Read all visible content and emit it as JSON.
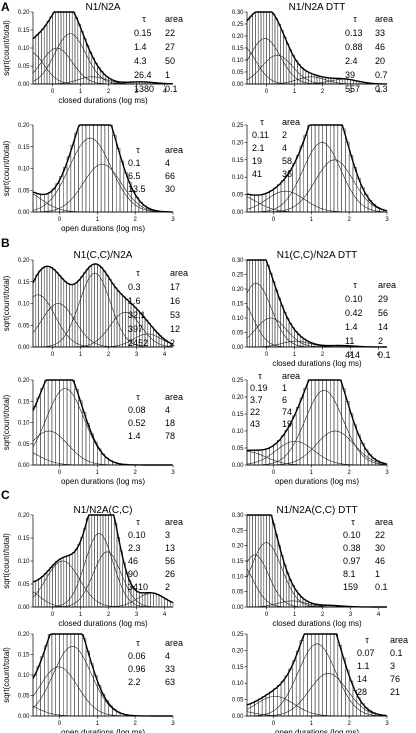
{
  "figure": {
    "panels": [
      {
        "letter": "A"
      },
      {
        "letter": "B"
      },
      {
        "letter": "C"
      }
    ]
  },
  "chart_data": [
    {
      "type": "bar",
      "panel": "A",
      "title": "N1/N2A",
      "xlabel": "closed durations (log ms)",
      "ylabel": "sqrt(count/total)",
      "xlim": [
        -0.7,
        4.3
      ],
      "ylim": [
        0,
        0.2
      ],
      "xticks": [
        "0",
        "1",
        "2",
        "3",
        "4"
      ],
      "yticks": [
        "0.00",
        "0.05",
        "0.10",
        "0.15",
        "0.20"
      ],
      "table": {
        "headers": [
          "τ",
          "area"
        ],
        "rows": [
          [
            "0.15",
            "22"
          ],
          [
            "1.4",
            "27"
          ],
          [
            "4.3",
            "50"
          ],
          [
            "26.4",
            "1"
          ],
          [
            "1380",
            "0.1"
          ]
        ]
      },
      "components": [
        [
          -0.82,
          0.5,
          0.09
        ],
        [
          0.15,
          0.55,
          0.1
        ],
        [
          0.63,
          0.55,
          0.14
        ],
        [
          1.42,
          0.5,
          0.02
        ],
        [
          3.14,
          0.5,
          0.006
        ]
      ],
      "kinds": [
        "closed"
      ]
    },
    {
      "type": "bar",
      "panel": "A",
      "title": "N1/N2A DTT",
      "xlabel": "",
      "ylabel": "",
      "xlim": [
        -0.7,
        4.3
      ],
      "ylim": [
        0,
        0.3
      ],
      "xticks": [
        "0",
        "1",
        "2",
        "3",
        "4"
      ],
      "yticks": [
        "0.00",
        "0.05",
        "0.10",
        "0.15",
        "0.20",
        "0.25",
        "0.30"
      ],
      "table": {
        "headers": [
          "τ",
          "area"
        ],
        "rows": [
          [
            "0.13",
            "33"
          ],
          [
            "0.88",
            "46"
          ],
          [
            "2.4",
            "20"
          ],
          [
            "39",
            "0.7"
          ],
          [
            "557",
            "0.3"
          ]
        ]
      },
      "components": [
        [
          -0.89,
          0.5,
          0.16
        ],
        [
          -0.06,
          0.55,
          0.19
        ],
        [
          0.38,
          0.55,
          0.12
        ],
        [
          1.59,
          0.5,
          0.03
        ],
        [
          2.75,
          0.5,
          0.02
        ]
      ],
      "kinds": [
        "closed"
      ]
    },
    {
      "type": "bar",
      "panel": "A",
      "title": "",
      "xlabel": "open durations (log ms)",
      "ylabel": "sqrt(count/total)",
      "xlim": [
        -0.7,
        3.0
      ],
      "ylim": [
        0,
        0.2
      ],
      "xticks": [
        "0",
        "1",
        "2",
        "3"
      ],
      "yticks": [
        "0.00",
        "0.05",
        "0.10",
        "0.15",
        "0.20"
      ],
      "table": {
        "headers": [
          "τ",
          "area"
        ],
        "rows": [
          [
            "0.1",
            "4"
          ],
          [
            "6.5",
            "66"
          ],
          [
            "13.5",
            "30"
          ]
        ]
      },
      "components": [
        [
          -1.0,
          0.5,
          0.05
        ],
        [
          0.81,
          0.55,
          0.17
        ],
        [
          1.13,
          0.5,
          0.11
        ]
      ],
      "kinds": [
        "open"
      ]
    },
    {
      "type": "bar",
      "panel": "A",
      "title": "",
      "xlabel": "",
      "ylabel": "",
      "xlim": [
        -0.7,
        3.0
      ],
      "ylim": [
        0,
        0.25
      ],
      "xticks": [
        "0",
        "1",
        "2",
        "3"
      ],
      "yticks": [
        "0.00",
        "0.05",
        "0.10",
        "0.15",
        "0.20",
        "0.25"
      ],
      "table": {
        "headers": [
          "τ",
          "area"
        ],
        "rows": [
          [
            "0.11",
            "2"
          ],
          [
            "2.1",
            "4"
          ],
          [
            "19",
            "58"
          ],
          [
            "41",
            "36"
          ]
        ]
      },
      "components": [
        [
          -0.96,
          0.5,
          0.05
        ],
        [
          0.32,
          0.5,
          0.06
        ],
        [
          1.28,
          0.5,
          0.2
        ],
        [
          1.61,
          0.5,
          0.15
        ]
      ],
      "kinds": [
        "open"
      ]
    },
    {
      "type": "bar",
      "panel": "B",
      "title": "N1(C,C)/N2A",
      "xlabel": "",
      "ylabel": "sqrt(count/total)",
      "xlim": [
        -0.7,
        4.3
      ],
      "ylim": [
        0,
        0.2
      ],
      "xticks": [
        "0",
        "1",
        "2",
        "3",
        "4"
      ],
      "yticks": [
        "0.00",
        "0.05",
        "0.10",
        "0.15",
        "0.20"
      ],
      "table": {
        "headers": [
          "τ",
          "area"
        ],
        "rows": [
          [
            "0.3",
            "17"
          ],
          [
            "1.6",
            "16"
          ],
          [
            "32.1",
            "53"
          ],
          [
            "397",
            "12"
          ],
          [
            "2452",
            "2"
          ]
        ]
      },
      "components": [
        [
          -0.52,
          0.6,
          0.12
        ],
        [
          0.2,
          0.6,
          0.1
        ],
        [
          1.51,
          0.55,
          0.17
        ],
        [
          2.6,
          0.55,
          0.08
        ],
        [
          3.39,
          0.5,
          0.03
        ]
      ],
      "kinds": [
        "closed"
      ]
    },
    {
      "type": "bar",
      "panel": "B",
      "title": "N1(C,C)/N2A DTT",
      "xlabel": "closed durations (log ms)",
      "ylabel": "",
      "xlim": [
        -0.7,
        4.3
      ],
      "ylim": [
        0,
        0.3
      ],
      "xticks": [
        "0",
        "1",
        "2",
        "3",
        "4"
      ],
      "yticks": [
        "0.00",
        "0.05",
        "0.10",
        "0.15",
        "0.20",
        "0.25",
        "0.30"
      ],
      "table": {
        "headers": [
          "τ",
          "area"
        ],
        "rows": [
          [
            "0.10",
            "29"
          ],
          [
            "0.42",
            "56"
          ],
          [
            "1.4",
            "14"
          ],
          [
            "11",
            "2"
          ],
          [
            "414",
            "0.1"
          ]
        ]
      },
      "components": [
        [
          -1.0,
          0.5,
          0.17
        ],
        [
          -0.38,
          0.55,
          0.22
        ],
        [
          0.15,
          0.55,
          0.1
        ],
        [
          1.04,
          0.5,
          0.02
        ],
        [
          2.62,
          0.5,
          0.005
        ]
      ],
      "kinds": [
        "closed"
      ]
    },
    {
      "type": "bar",
      "panel": "B",
      "title": "",
      "xlabel": "open durations (log ms)",
      "ylabel": "sqrt(count/total)",
      "xlim": [
        -0.7,
        3.0
      ],
      "ylim": [
        0,
        0.2
      ],
      "xticks": [
        "0",
        "1",
        "2",
        "3"
      ],
      "yticks": [
        "0.00",
        "0.05",
        "0.10",
        "0.15",
        "0.20"
      ],
      "table": {
        "headers": [
          "τ",
          "area"
        ],
        "rows": [
          [
            "0.08",
            "4"
          ],
          [
            "0.52",
            "18"
          ],
          [
            "1.4",
            "78"
          ]
        ]
      },
      "components": [
        [
          -1.1,
          0.5,
          0.04
        ],
        [
          -0.28,
          0.5,
          0.08
        ],
        [
          0.15,
          0.5,
          0.18
        ]
      ],
      "kinds": [
        "open"
      ]
    },
    {
      "type": "bar",
      "panel": "B",
      "title": "",
      "xlabel": "open durations (log ms)",
      "ylabel": "",
      "xlim": [
        -0.7,
        3.0
      ],
      "ylim": [
        0,
        0.25
      ],
      "xticks": [
        "0",
        "1",
        "2",
        "3"
      ],
      "yticks": [
        "0.00",
        "0.05",
        "0.10",
        "0.15",
        "0.20",
        "0.25"
      ],
      "table": {
        "headers": [
          "τ",
          "area"
        ],
        "rows": [
          [
            "0.19",
            "1"
          ],
          [
            "3.7",
            "6"
          ],
          [
            "22",
            "74"
          ],
          [
            "43",
            "19"
          ]
        ]
      },
      "components": [
        [
          -0.72,
          0.5,
          0.04
        ],
        [
          0.57,
          0.5,
          0.07
        ],
        [
          1.34,
          0.5,
          0.22
        ],
        [
          1.63,
          0.5,
          0.1
        ]
      ],
      "kinds": [
        "open"
      ]
    },
    {
      "type": "bar",
      "panel": "C",
      "title": "N1/N2A(C,C)",
      "xlabel": "closed durations (log ms)",
      "ylabel": "sqrt(count/total)",
      "xlim": [
        -0.7,
        4.3
      ],
      "ylim": [
        0,
        0.2
      ],
      "xticks": [
        "0",
        "1",
        "2",
        "3",
        "4"
      ],
      "yticks": [
        "0.00",
        "0.05",
        "0.10",
        "0.15",
        "0.20"
      ],
      "table": {
        "headers": [
          "τ",
          "area"
        ],
        "rows": [
          [
            "0.10",
            "3"
          ],
          [
            "2.3",
            "13"
          ],
          [
            "46",
            "56"
          ],
          [
            "90",
            "26"
          ],
          [
            "3410",
            "2"
          ]
        ]
      },
      "components": [
        [
          -1.0,
          0.5,
          0.04
        ],
        [
          0.36,
          0.6,
          0.1
        ],
        [
          1.66,
          0.5,
          0.16
        ],
        [
          1.95,
          0.5,
          0.12
        ],
        [
          3.53,
          0.5,
          0.03
        ]
      ],
      "kinds": [
        "closed"
      ]
    },
    {
      "type": "bar",
      "panel": "C",
      "title": "N1/N2A(C,C) DTT",
      "xlabel": "closed durations (log ms)",
      "ylabel": "",
      "xlim": [
        -0.7,
        4.3
      ],
      "ylim": [
        0,
        0.3
      ],
      "xticks": [
        "0",
        "1",
        "2",
        "3",
        "4"
      ],
      "yticks": [
        "0.00",
        "0.05",
        "0.10",
        "0.15",
        "0.20",
        "0.25",
        "0.30"
      ],
      "table": {
        "headers": [
          "τ",
          "area"
        ],
        "rows": [
          [
            "0.10",
            "22"
          ],
          [
            "0.38",
            "30"
          ],
          [
            "0.97",
            "46"
          ],
          [
            "8.1",
            "1"
          ],
          [
            "159",
            "0.1"
          ]
        ]
      },
      "components": [
        [
          -1.0,
          0.5,
          0.15
        ],
        [
          -0.42,
          0.5,
          0.17
        ],
        [
          -0.01,
          0.55,
          0.21
        ],
        [
          0.91,
          0.5,
          0.02
        ],
        [
          2.2,
          0.5,
          0.005
        ]
      ],
      "kinds": [
        "closed"
      ]
    },
    {
      "type": "bar",
      "panel": "C",
      "title": "",
      "xlabel": "open durations (log ms)",
      "ylabel": "sqrt(count/total)",
      "xlim": [
        -0.7,
        3.0
      ],
      "ylim": [
        0,
        0.2
      ],
      "xticks": [
        "0",
        "1",
        "2",
        "3"
      ],
      "yticks": [
        "0.00",
        "0.05",
        "0.10",
        "0.15",
        "0.20"
      ],
      "table": {
        "headers": [
          "τ",
          "area"
        ],
        "rows": [
          [
            "0.06",
            "4"
          ],
          [
            "0.96",
            "33"
          ],
          [
            "2.2",
            "63"
          ]
        ]
      },
      "components": [
        [
          -1.2,
          0.5,
          0.04
        ],
        [
          -0.02,
          0.5,
          0.12
        ],
        [
          0.34,
          0.5,
          0.17
        ]
      ],
      "kinds": [
        "open"
      ]
    },
    {
      "type": "bar",
      "panel": "C",
      "title": "",
      "xlabel": "open durations (log ms)",
      "ylabel": "",
      "xlim": [
        -0.7,
        3.0
      ],
      "ylim": [
        0,
        0.25
      ],
      "xticks": [
        "0",
        "1",
        "2",
        "3"
      ],
      "yticks": [
        "0.00",
        "0.05",
        "0.10",
        "0.15",
        "0.20",
        "0.25"
      ],
      "table": {
        "headers": [
          "τ",
          "area"
        ],
        "rows": [
          [
            "0.07",
            "0.1"
          ],
          [
            "1.1",
            "3"
          ],
          [
            "14",
            "76"
          ],
          [
            "28",
            "21"
          ]
        ]
      },
      "components": [
        [
          -1.15,
          0.5,
          0.02
        ],
        [
          0.04,
          0.5,
          0.06
        ],
        [
          1.15,
          0.5,
          0.22
        ],
        [
          1.45,
          0.5,
          0.13
        ]
      ],
      "kinds": [
        "open"
      ]
    }
  ]
}
